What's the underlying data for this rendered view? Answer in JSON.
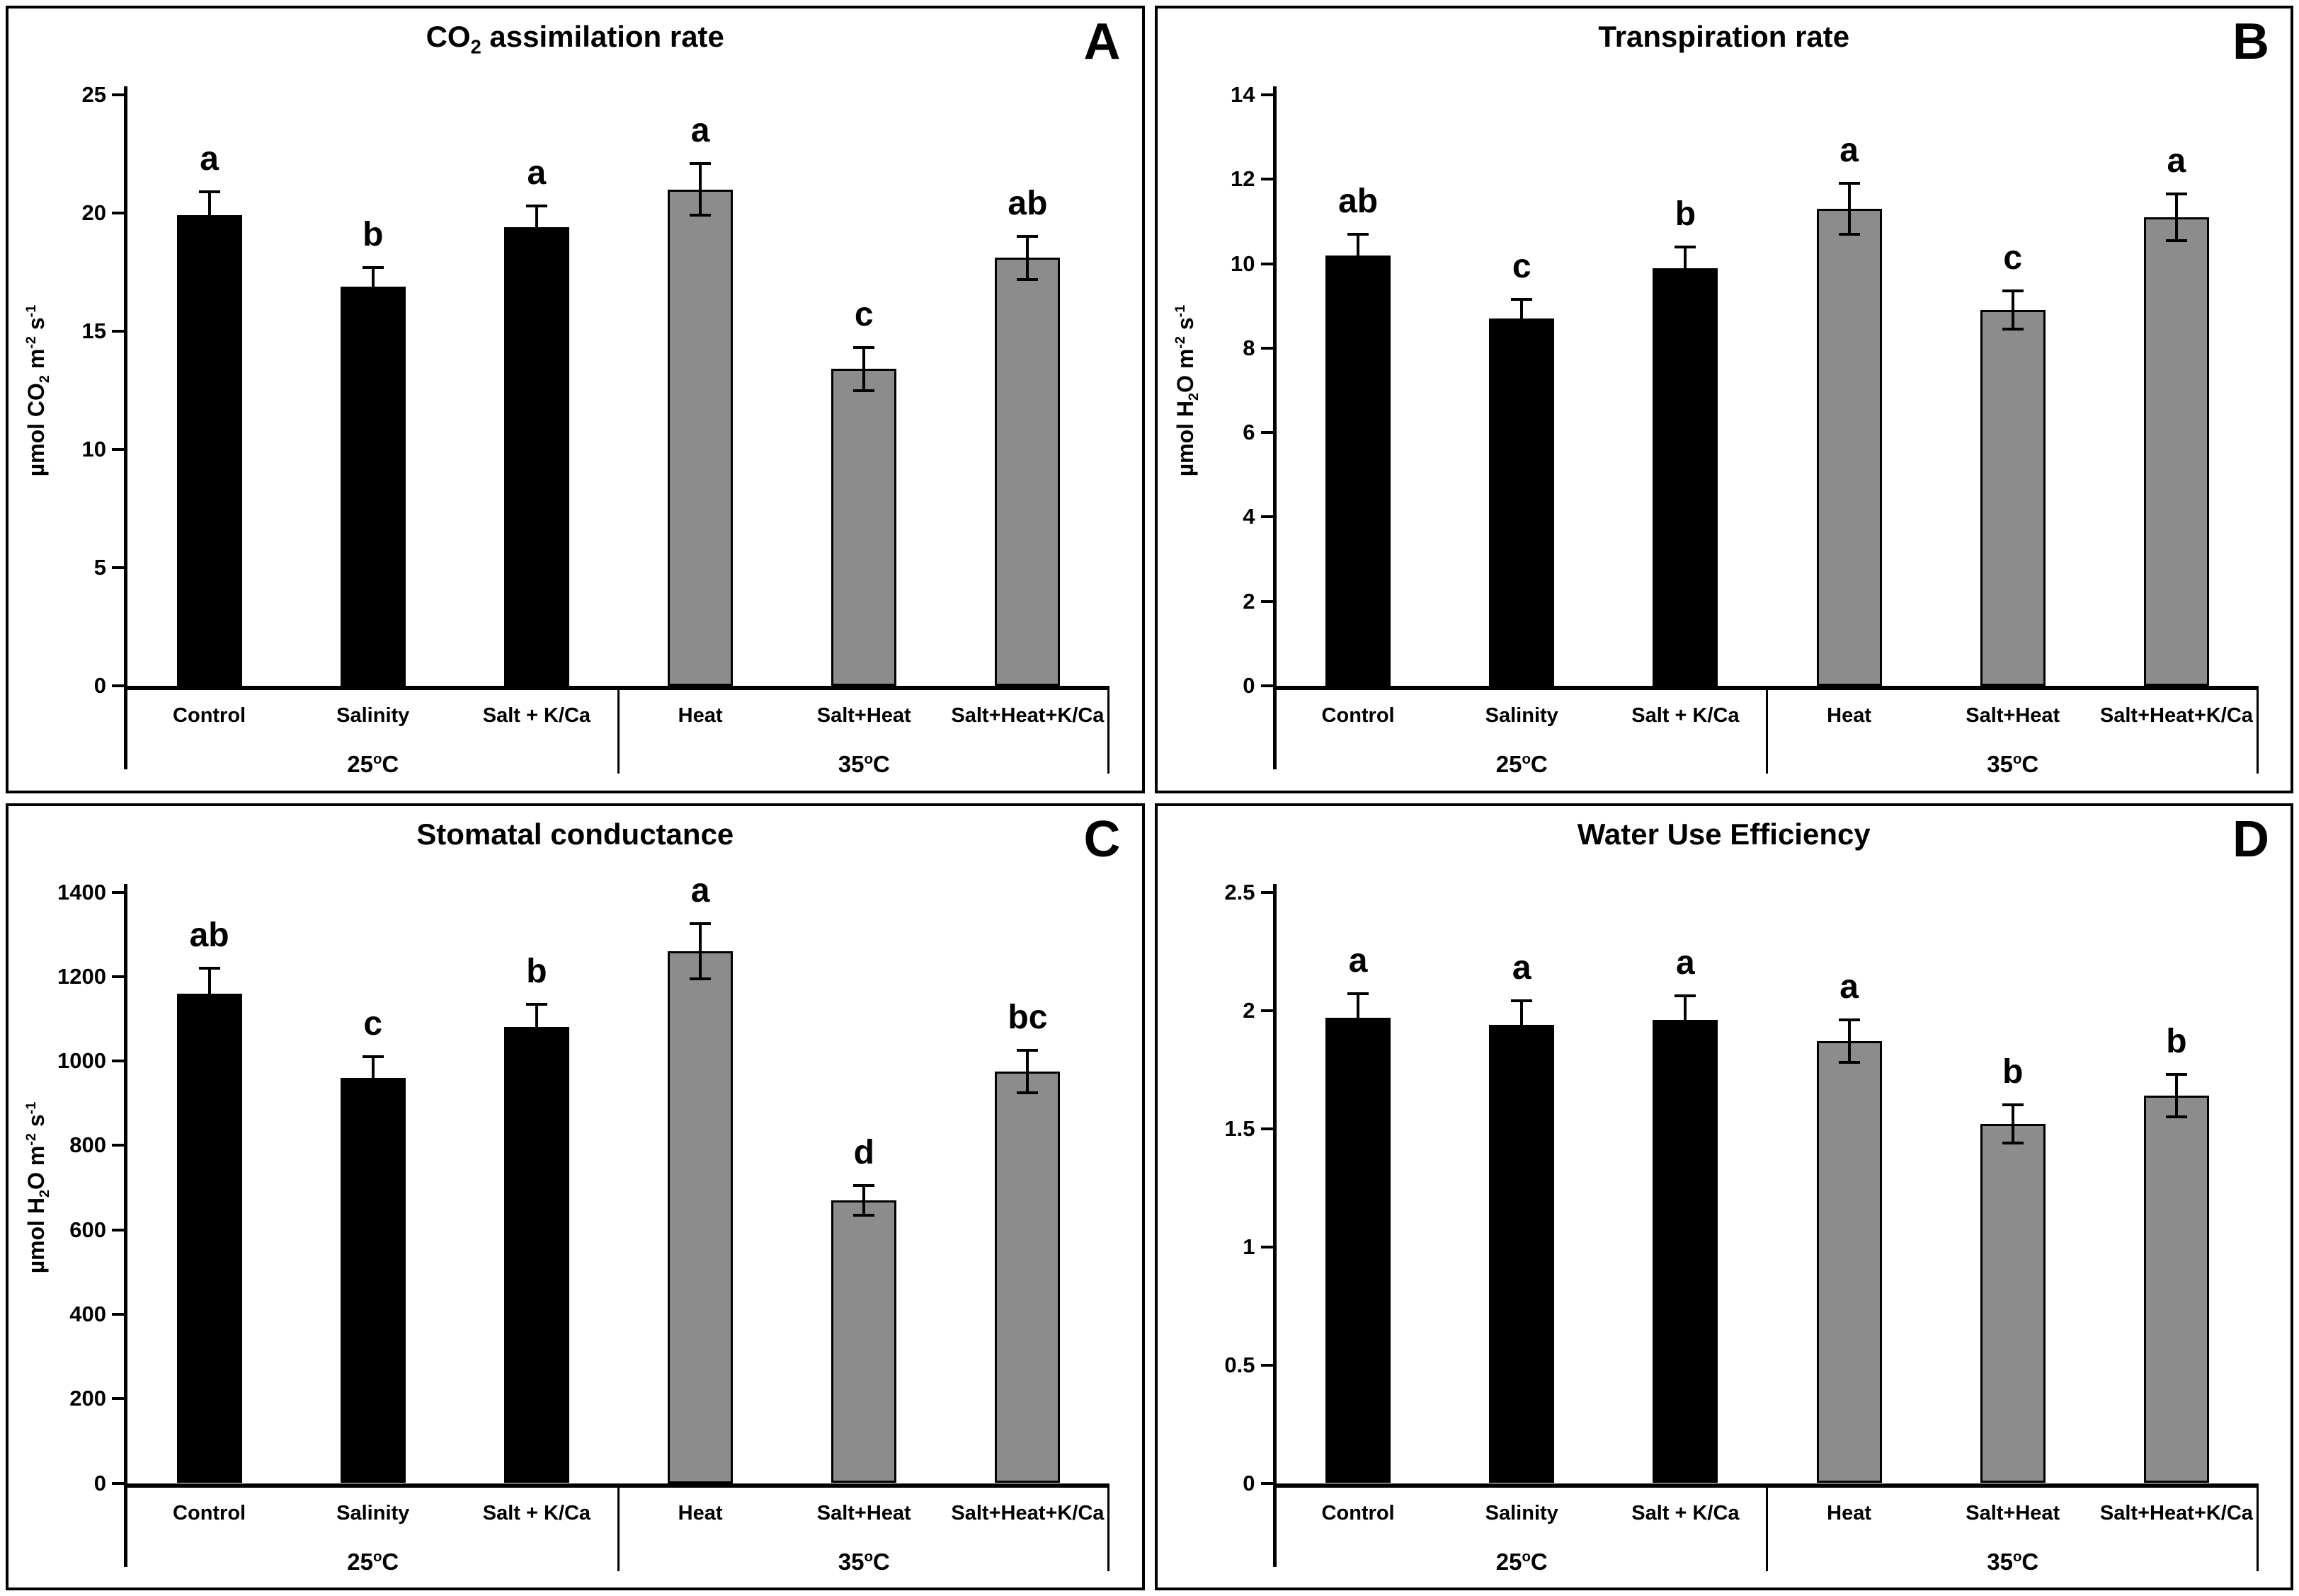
{
  "figure": {
    "background": "#ffffff",
    "categories": [
      "Control",
      "Salinity",
      "Salt + K/Ca",
      "Heat",
      "Salt+Heat",
      "Salt+Heat+K/Ca"
    ],
    "group_labels": [
      "25oC",
      "35oC"
    ],
    "groups_rich": [
      [
        {
          "t": "25"
        },
        {
          "sup": "o"
        },
        {
          "t": "C"
        }
      ],
      [
        {
          "t": "35"
        },
        {
          "sup": "o"
        },
        {
          "t": "C"
        }
      ]
    ],
    "colors": {
      "black_bar": "#000000",
      "gray_bar": "#8c8c8c",
      "axis": "#000000",
      "text": "#000000",
      "background": "#ffffff"
    }
  },
  "chart_data": [
    {
      "type": "bar",
      "panel_letter": "A",
      "title": "CO2 assimilation rate",
      "title_rich": [
        {
          "t": "CO"
        },
        {
          "sub": "2"
        },
        {
          "t": " assimilation rate"
        }
      ],
      "ylabel": "umol CO2 m-2 s-1",
      "ylabel_rich": [
        {
          "t": "µmol CO"
        },
        {
          "sub": "2"
        },
        {
          "t": " m"
        },
        {
          "sup": "-2"
        },
        {
          "t": " s"
        },
        {
          "sup": "-1"
        }
      ],
      "xlabel": "",
      "ylim": [
        0,
        25
      ],
      "ystep": 5,
      "grid": false,
      "legend": null,
      "categories": [
        "Control",
        "Salinity",
        "Salt + K/Ca",
        "Heat",
        "Salt+Heat",
        "Salt+Heat+K/Ca"
      ],
      "group_labels": [
        "25oC",
        "35oC"
      ],
      "values": [
        19.9,
        16.9,
        19.4,
        21.0,
        13.4,
        18.1
      ],
      "errors": [
        1.0,
        0.8,
        0.9,
        1.1,
        0.9,
        0.9
      ],
      "sig_letters": [
        "a",
        "b",
        "a",
        "a",
        "c",
        "ab"
      ],
      "bar_colors": [
        "#000000",
        "#000000",
        "#000000",
        "#8c8c8c",
        "#8c8c8c",
        "#8c8c8c"
      ]
    },
    {
      "type": "bar",
      "panel_letter": "B",
      "title": "Transpiration rate",
      "title_rich": [
        {
          "t": "Transpiration rate"
        }
      ],
      "ylabel": "umol H2O m-2 s-1",
      "ylabel_rich": [
        {
          "t": "µmol H"
        },
        {
          "sub": "2"
        },
        {
          "t": "O m"
        },
        {
          "sup": "-2"
        },
        {
          "t": " s"
        },
        {
          "sup": "-1"
        }
      ],
      "xlabel": "",
      "ylim": [
        0,
        14
      ],
      "ystep": 2,
      "grid": false,
      "legend": null,
      "categories": [
        "Control",
        "Salinity",
        "Salt + K/Ca",
        "Heat",
        "Salt+Heat",
        "Salt+Heat+K/Ca"
      ],
      "group_labels": [
        "25oC",
        "35oC"
      ],
      "values": [
        10.2,
        8.7,
        9.9,
        11.3,
        8.9,
        11.1
      ],
      "errors": [
        0.5,
        0.45,
        0.5,
        0.6,
        0.45,
        0.55
      ],
      "sig_letters": [
        "ab",
        "c",
        "b",
        "a",
        "c",
        "a"
      ],
      "bar_colors": [
        "#000000",
        "#000000",
        "#000000",
        "#8c8c8c",
        "#8c8c8c",
        "#8c8c8c"
      ]
    },
    {
      "type": "bar",
      "panel_letter": "C",
      "title": "Stomatal conductance",
      "title_rich": [
        {
          "t": "Stomatal conductance"
        }
      ],
      "ylabel": "umol H2O m-2 s-1",
      "ylabel_rich": [
        {
          "t": "µmol H"
        },
        {
          "sub": "2"
        },
        {
          "t": "O m"
        },
        {
          "sup": "-2"
        },
        {
          "t": " s"
        },
        {
          "sup": "-1"
        }
      ],
      "xlabel": "",
      "ylim": [
        0,
        1400
      ],
      "ystep": 200,
      "grid": false,
      "legend": null,
      "categories": [
        "Control",
        "Salinity",
        "Salt + K/Ca",
        "Heat",
        "Salt+Heat",
        "Salt+Heat+K/Ca"
      ],
      "group_labels": [
        "25oC",
        "35oC"
      ],
      "values": [
        1160,
        960,
        1080,
        1260,
        670,
        975
      ],
      "errors": [
        60,
        50,
        55,
        65,
        35,
        50
      ],
      "sig_letters": [
        "ab",
        "c",
        "b",
        "a",
        "d",
        "bc"
      ],
      "bar_colors": [
        "#000000",
        "#000000",
        "#000000",
        "#8c8c8c",
        "#8c8c8c",
        "#8c8c8c"
      ]
    },
    {
      "type": "bar",
      "panel_letter": "D",
      "title": "Water Use Efficiency",
      "title_rich": [
        {
          "t": "Water Use Efficiency"
        }
      ],
      "ylabel": "",
      "ylabel_rich": [],
      "xlabel": "",
      "ylim": [
        0,
        2.5
      ],
      "ystep": 0.5,
      "grid": false,
      "legend": null,
      "categories": [
        "Control",
        "Salinity",
        "Salt + K/Ca",
        "Heat",
        "Salt+Heat",
        "Salt+Heat+K/Ca"
      ],
      "group_labels": [
        "25oC",
        "35oC"
      ],
      "values": [
        1.97,
        1.94,
        1.96,
        1.87,
        1.52,
        1.64
      ],
      "errors": [
        0.1,
        0.1,
        0.1,
        0.09,
        0.08,
        0.09
      ],
      "sig_letters": [
        "a",
        "a",
        "a",
        "a",
        "b",
        "b"
      ],
      "bar_colors": [
        "#000000",
        "#000000",
        "#000000",
        "#8c8c8c",
        "#8c8c8c",
        "#8c8c8c"
      ]
    }
  ]
}
